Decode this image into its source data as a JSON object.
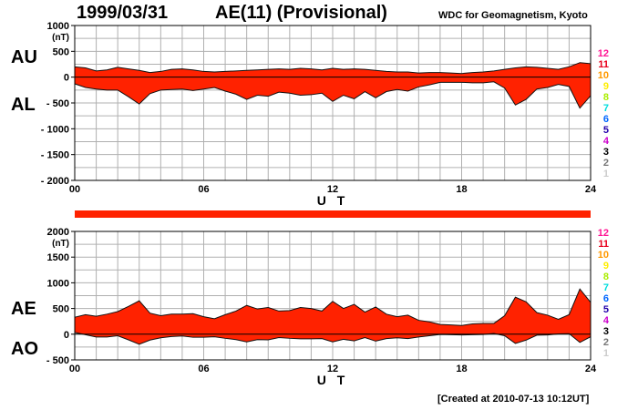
{
  "header": {
    "date": "1999/03/31",
    "title": "AE(11) (Provisional)",
    "source": "WDC for Geomagnetism, Kyoto"
  },
  "footer": "[Created at 2010-07-13 10:12UT]",
  "colors": {
    "fill": "#ff2200",
    "grid": "#b0b0b0",
    "axis": "#000000"
  },
  "station_legend": [
    {
      "label": "12",
      "color": "#ff1493"
    },
    {
      "label": "11",
      "color": "#e8001c"
    },
    {
      "label": "10",
      "color": "#ff9900"
    },
    {
      "label": "9",
      "color": "#ffee00"
    },
    {
      "label": "8",
      "color": "#aaee00"
    },
    {
      "label": "7",
      "color": "#00dddd"
    },
    {
      "label": "6",
      "color": "#0066ff"
    },
    {
      "label": "5",
      "color": "#2200aa"
    },
    {
      "label": "4",
      "color": "#cc00cc"
    },
    {
      "label": "3",
      "color": "#000000"
    },
    {
      "label": "2",
      "color": "#777777"
    },
    {
      "label": "1",
      "color": "#cccccc"
    }
  ],
  "chart_data": [
    {
      "type": "area",
      "name": "AU/AL",
      "labels": [
        "AU",
        "AL"
      ],
      "ylim": [
        -2000,
        1000
      ],
      "yticks": [
        1000,
        500,
        0,
        -500,
        -1000,
        -1500,
        -2000
      ],
      "ytick_labels": [
        "1000",
        "500",
        "0",
        "- 500",
        "- 1000",
        "- 1500",
        "- 2000"
      ],
      "yunit": "(nT)",
      "xlim": [
        0,
        24
      ],
      "xticks": [
        0,
        6,
        12,
        18,
        24
      ],
      "xtick_labels": [
        "00",
        "06",
        "12",
        "18",
        "24"
      ],
      "xlabel": "U T",
      "grid": true,
      "x": [
        0,
        0.5,
        1,
        1.5,
        2,
        2.5,
        3,
        3.5,
        4,
        4.5,
        5,
        5.5,
        6,
        6.5,
        7,
        7.5,
        8,
        8.5,
        9,
        9.5,
        10,
        10.5,
        11,
        11.5,
        12,
        12.5,
        13,
        13.5,
        14,
        14.5,
        15,
        15.5,
        16,
        16.5,
        17,
        17.5,
        18,
        18.5,
        19,
        19.5,
        20,
        20.5,
        21,
        21.5,
        22,
        22.5,
        23,
        23.5,
        24
      ],
      "series": [
        {
          "name": "AU",
          "values": [
            200,
            180,
            120,
            140,
            190,
            160,
            130,
            90,
            110,
            150,
            160,
            140,
            110,
            100,
            110,
            120,
            130,
            140,
            150,
            160,
            150,
            170,
            160,
            140,
            170,
            150,
            160,
            150,
            130,
            110,
            100,
            100,
            80,
            90,
            90,
            80,
            70,
            90,
            100,
            120,
            150,
            180,
            200,
            190,
            170,
            150,
            200,
            280,
            260
          ]
        },
        {
          "name": "AL",
          "values": [
            -130,
            -200,
            -230,
            -250,
            -250,
            -380,
            -520,
            -320,
            -250,
            -240,
            -230,
            -260,
            -230,
            -200,
            -270,
            -330,
            -430,
            -350,
            -370,
            -290,
            -310,
            -350,
            -340,
            -310,
            -470,
            -350,
            -420,
            -280,
            -400,
            -280,
            -240,
            -270,
            -190,
            -150,
            -100,
            -100,
            -100,
            -110,
            -110,
            -90,
            -210,
            -540,
            -430,
            -230,
            -200,
            -140,
            -180,
            -600,
            -360
          ]
        }
      ]
    },
    {
      "type": "area",
      "name": "AE/AO",
      "labels": [
        "AE",
        "AO"
      ],
      "ylim": [
        -500,
        2000
      ],
      "yticks": [
        2000,
        1500,
        1000,
        500,
        0,
        -500
      ],
      "ytick_labels": [
        "2000",
        "1500",
        "1000",
        "500",
        "0",
        "- 500"
      ],
      "yunit": "(nT)",
      "xlim": [
        0,
        24
      ],
      "xticks": [
        0,
        6,
        12,
        18,
        24
      ],
      "xtick_labels": [
        "00",
        "06",
        "12",
        "18",
        "24"
      ],
      "xlabel": "U T",
      "grid": true,
      "x": [
        0,
        0.5,
        1,
        1.5,
        2,
        2.5,
        3,
        3.5,
        4,
        4.5,
        5,
        5.5,
        6,
        6.5,
        7,
        7.5,
        8,
        8.5,
        9,
        9.5,
        10,
        10.5,
        11,
        11.5,
        12,
        12.5,
        13,
        13.5,
        14,
        14.5,
        15,
        15.5,
        16,
        16.5,
        17,
        17.5,
        18,
        18.5,
        19,
        19.5,
        20,
        20.5,
        21,
        21.5,
        22,
        22.5,
        23,
        23.5,
        24
      ],
      "series": [
        {
          "name": "AE",
          "values": [
            330,
            380,
            350,
            390,
            440,
            540,
            650,
            410,
            360,
            390,
            390,
            400,
            340,
            300,
            380,
            450,
            560,
            490,
            520,
            450,
            460,
            520,
            500,
            450,
            640,
            500,
            580,
            430,
            530,
            390,
            340,
            370,
            270,
            240,
            190,
            180,
            170,
            200,
            210,
            210,
            360,
            720,
            630,
            420,
            370,
            290,
            380,
            880,
            620
          ]
        },
        {
          "name": "AO",
          "values": [
            35,
            -10,
            -55,
            -55,
            -30,
            -110,
            -195,
            -115,
            -70,
            -45,
            -35,
            -60,
            -60,
            -50,
            -80,
            -105,
            -150,
            -105,
            -110,
            -65,
            -80,
            -90,
            -90,
            -85,
            -150,
            -100,
            -130,
            -65,
            -135,
            -85,
            -70,
            -85,
            -55,
            -30,
            -5,
            -10,
            -15,
            -10,
            -5,
            15,
            -30,
            -180,
            -115,
            -20,
            -15,
            5,
            10,
            -160,
            -50
          ]
        }
      ]
    }
  ]
}
